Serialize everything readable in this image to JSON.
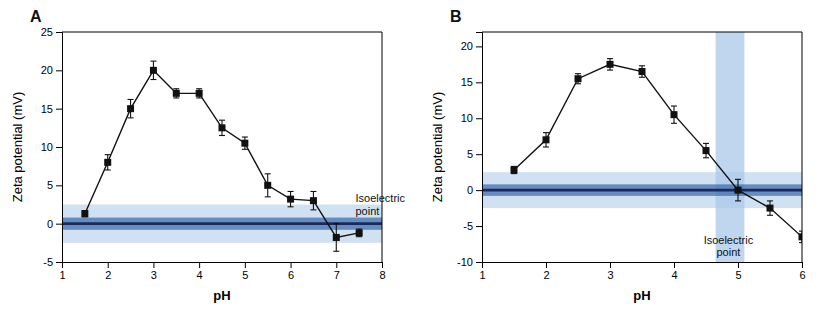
{
  "chart_data": [
    {
      "type": "line",
      "title": "A",
      "xlabel": "pH",
      "ylabel": "Zeta potential (mV)",
      "color": "#111111",
      "marker": "square",
      "x": [
        1.5,
        2.0,
        2.5,
        3.0,
        3.5,
        4.0,
        4.5,
        5.0,
        5.5,
        6.0,
        6.5,
        7.0,
        7.5
      ],
      "values": [
        1.3,
        8.0,
        15.0,
        20.0,
        17.0,
        17.0,
        12.5,
        10.5,
        5.0,
        3.2,
        3.0,
        -1.8,
        -1.2
      ],
      "yerr": [
        0.4,
        1.0,
        1.2,
        1.2,
        0.6,
        0.6,
        1.0,
        0.8,
        1.5,
        1.0,
        1.2,
        1.8,
        0.5
      ],
      "xlim": [
        1,
        8
      ],
      "ylim": [
        -5,
        25
      ],
      "xticks": [
        1,
        2,
        3,
        4,
        5,
        6,
        7,
        8
      ],
      "yticks": [
        -5,
        0,
        5,
        10,
        15,
        20,
        25
      ],
      "bands": [
        {
          "ymin": -2.5,
          "ymax": 2.5,
          "color": "#aac8e8"
        },
        {
          "ymin": -0.8,
          "ymax": 0.8,
          "color": "#2e5fa3"
        }
      ],
      "hline": {
        "y": 0,
        "color": "#1a2a5e"
      },
      "annotations": [
        {
          "text": "Isoelectric\npoint",
          "x": 7.42,
          "y": 4.2
        }
      ]
    },
    {
      "type": "line",
      "title": "B",
      "xlabel": "pH",
      "ylabel": "Zeta potential (mV)",
      "color": "#111111",
      "marker": "square",
      "x": [
        1.5,
        2.0,
        2.5,
        3.0,
        3.5,
        4.0,
        4.5,
        5.0,
        5.5,
        6.0
      ],
      "values": [
        2.8,
        7.0,
        15.5,
        17.5,
        16.5,
        10.5,
        5.5,
        0.0,
        -2.5,
        -6.5
      ],
      "yerr": [
        0.5,
        1.0,
        0.7,
        0.8,
        0.8,
        1.2,
        1.0,
        1.5,
        1.0,
        0.8
      ],
      "xlim": [
        1,
        6
      ],
      "ylim": [
        -10,
        22
      ],
      "xticks": [
        1,
        2,
        3,
        4,
        5,
        6
      ],
      "yticks": [
        -10,
        -5,
        0,
        5,
        10,
        15,
        20
      ],
      "bands": [
        {
          "ymin": -2.5,
          "ymax": 2.5,
          "color": "#aac8e8"
        },
        {
          "ymin": -0.8,
          "ymax": 0.8,
          "color": "#2e5fa3"
        }
      ],
      "shade": {
        "xmin": 4.65,
        "xmax": 5.1,
        "color": "#aac8e8"
      },
      "hline": {
        "y": 0,
        "color": "#1a2a5e"
      },
      "annotations": [
        {
          "text": "Isoelectric\npoint",
          "x": 4.85,
          "y": -6.0
        }
      ]
    }
  ]
}
